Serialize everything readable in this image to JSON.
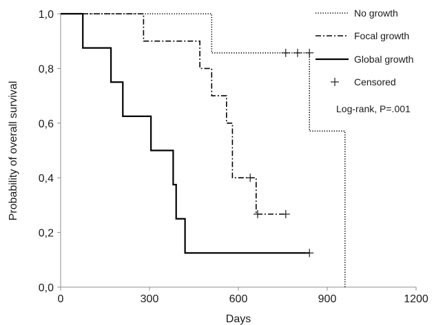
{
  "chart_data": {
    "type": "line",
    "subtype": "kaplan-meier step",
    "title": "",
    "xlabel": "Days",
    "ylabel": "Probability of overall survival",
    "xlim": [
      0,
      1200
    ],
    "ylim": [
      0,
      1
    ],
    "x_ticks": [
      0,
      300,
      600,
      900,
      1200
    ],
    "x_tick_labels": [
      "0",
      "300",
      "600",
      "900",
      "1200"
    ],
    "y_ticks": [
      0,
      0.2,
      0.4,
      0.6,
      0.8,
      1.0
    ],
    "y_tick_labels": [
      "0,0",
      "0,2",
      "0,4",
      "0,6",
      "0,8",
      "1,0"
    ],
    "grid": false,
    "legend_position": "top-right",
    "series": [
      {
        "name": "No growth",
        "line_style": "dotted",
        "color": "#000000",
        "steps": [
          [
            0,
            1.0
          ],
          [
            510,
            0.857
          ],
          [
            840,
            0.571
          ],
          [
            960,
            0.0
          ]
        ],
        "censored": [
          [
            760,
            0.857
          ],
          [
            800,
            0.857
          ],
          [
            840,
            0.857
          ]
        ]
      },
      {
        "name": "Focal growth",
        "line_style": "dash-dot",
        "color": "#000000",
        "steps": [
          [
            0,
            1.0
          ],
          [
            280,
            0.9
          ],
          [
            470,
            0.8
          ],
          [
            510,
            0.7
          ],
          [
            560,
            0.6
          ],
          [
            580,
            0.4
          ],
          [
            660,
            0.267
          ]
        ],
        "censored": [
          [
            640,
            0.4
          ],
          [
            665,
            0.267
          ],
          [
            760,
            0.267
          ]
        ]
      },
      {
        "name": "Global growth",
        "line_style": "solid",
        "color": "#000000",
        "steps": [
          [
            0,
            1.0
          ],
          [
            75,
            0.875
          ],
          [
            170,
            0.75
          ],
          [
            210,
            0.625
          ],
          [
            305,
            0.5
          ],
          [
            380,
            0.375
          ],
          [
            390,
            0.25
          ],
          [
            420,
            0.125
          ]
        ],
        "censored": [
          [
            840,
            0.125
          ]
        ]
      }
    ],
    "censored_label": "Censored",
    "annotation": "Log-rank, P=.001"
  }
}
